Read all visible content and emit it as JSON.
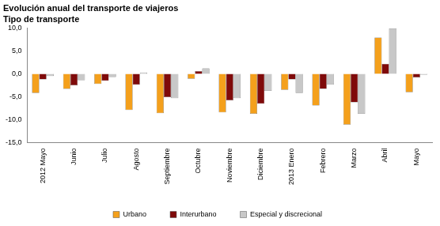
{
  "chart_data": {
    "type": "bar",
    "title": "Evolución anual del transporte de viajeros",
    "subtitle": "Tipo de transporte",
    "categories": [
      "2012 Mayo",
      "Junio",
      "Julio",
      "Agosto",
      "Septiembre",
      "Octubre",
      "Noviembre",
      "Diciembre",
      "2013 Enero",
      "Febrero",
      "Marzo",
      "Abril",
      "Mayo"
    ],
    "series": [
      {
        "name": "Urbano",
        "color": "#f4a01c",
        "values": [
          -4.2,
          -3.3,
          -2.2,
          -7.9,
          -8.6,
          -1.1,
          -8.4,
          -8.7,
          -3.5,
          -6.9,
          -11.1,
          7.9,
          -4.0
        ]
      },
      {
        "name": "Interurbano",
        "color": "#7f0a0a",
        "values": [
          -1.2,
          -2.5,
          -1.5,
          -2.4,
          -5.1,
          0.6,
          -5.8,
          -6.5,
          -1.2,
          -3.3,
          -6.2,
          2.2,
          -0.8
        ]
      },
      {
        "name": "Especial y discrecional",
        "color": "#c8c8c8",
        "values": [
          -0.5,
          -1.4,
          -0.7,
          0.3,
          -5.3,
          1.2,
          -5.3,
          -3.7,
          -4.2,
          -2.3,
          -8.7,
          9.9,
          -0.2
        ]
      }
    ],
    "ylim": [
      -15,
      10
    ],
    "yticks": [
      {
        "value": -15,
        "label": "-15,0"
      },
      {
        "value": -10,
        "label": "-10,0"
      },
      {
        "value": -5,
        "label": "-5,0"
      },
      {
        "value": 0,
        "label": "0,0"
      },
      {
        "value": 5,
        "label": "5,0"
      },
      {
        "value": 10,
        "label": "10,0"
      }
    ],
    "grid": false,
    "legend": "bottom"
  }
}
